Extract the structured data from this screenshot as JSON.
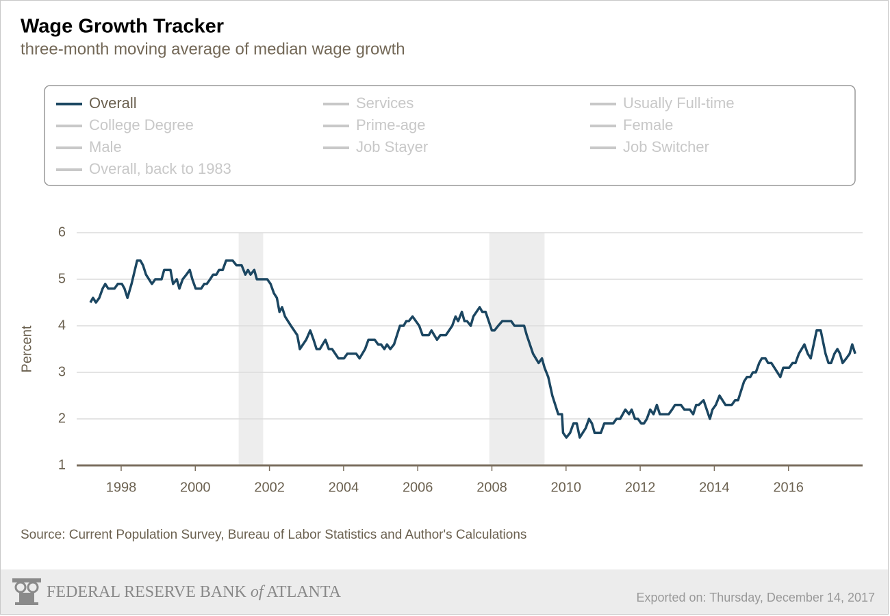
{
  "chart_data": {
    "type": "line",
    "title": "Wage Growth Tracker",
    "subtitle": "three-month moving average of median wage growth",
    "y_label": "Percent",
    "source": "Source: Current Population Survey, Bureau of Labor Statistics and Author's Calculations",
    "footer": {
      "bank": "FEDERAL RESERVE BANK",
      "bank_of": "of",
      "bank_city": "ATLANTA",
      "exported": "Exported on: Thursday, December 14, 2017"
    },
    "xlim": [
      1996.8,
      2018.0
    ],
    "xticks": [
      1998,
      2000,
      2002,
      2004,
      2006,
      2008,
      2010,
      2012,
      2014,
      2016
    ],
    "ylim": [
      1,
      6
    ],
    "yticks": [
      1,
      2,
      3,
      4,
      5,
      6
    ],
    "grid": true,
    "shaded_periods": [
      [
        2001.17,
        2001.83
      ],
      [
        2007.93,
        2009.42
      ]
    ],
    "shade_color": "#ededed",
    "inactive_color": "#c8c8c8",
    "inactive_series": [
      "Services",
      "Usually Full-time",
      "College Degree",
      "Prime-age",
      "Female",
      "Male",
      "Job Stayer",
      "Job Switcher",
      "Overall, back to 1983"
    ],
    "series": [
      {
        "name": "Overall",
        "color": "#1b4661",
        "x": [
          1997.17,
          1997.24,
          1997.32,
          1997.41,
          1997.5,
          1997.57,
          1997.65,
          1997.82,
          1997.91,
          1998.02,
          1998.09,
          1998.17,
          1998.28,
          1998.37,
          1998.43,
          1998.52,
          1998.59,
          1998.67,
          1998.83,
          1998.92,
          1999.09,
          1999.16,
          1999.33,
          1999.4,
          1999.5,
          1999.57,
          1999.66,
          1999.76,
          1999.85,
          1999.92,
          2000.01,
          2000.16,
          2000.24,
          2000.31,
          2000.4,
          2000.48,
          2000.57,
          2000.64,
          2000.74,
          2000.83,
          2001.01,
          2001.11,
          2001.25,
          2001.35,
          2001.42,
          2001.49,
          2001.59,
          2001.66,
          2001.94,
          2002.03,
          2002.12,
          2002.2,
          2002.27,
          2002.34,
          2002.42,
          2002.58,
          2002.75,
          2002.82,
          2002.99,
          2003.1,
          2003.19,
          2003.27,
          2003.36,
          2003.51,
          2003.6,
          2003.69,
          2003.86,
          2004.01,
          2004.1,
          2004.34,
          2004.43,
          2004.58,
          2004.67,
          2004.84,
          2004.93,
          2005.01,
          2005.1,
          2005.17,
          2005.26,
          2005.36,
          2005.52,
          2005.62,
          2005.69,
          2005.76,
          2005.86,
          2006.04,
          2006.13,
          2006.3,
          2006.37,
          2006.52,
          2006.61,
          2006.76,
          2006.93,
          2007.02,
          2007.09,
          2007.19,
          2007.26,
          2007.33,
          2007.43,
          2007.5,
          2007.67,
          2007.74,
          2007.83,
          2008.0,
          2008.07,
          2008.17,
          2008.28,
          2008.52,
          2008.61,
          2008.87,
          2008.94,
          2009.11,
          2009.26,
          2009.35,
          2009.42,
          2009.52,
          2009.63,
          2009.79,
          2009.89,
          2009.92,
          2010.01,
          2010.11,
          2010.2,
          2010.29,
          2010.37,
          2010.53,
          2010.62,
          2010.7,
          2010.77,
          2010.94,
          2011.03,
          2011.27,
          2011.36,
          2011.46,
          2011.6,
          2011.7,
          2011.77,
          2011.86,
          2011.94,
          2012.03,
          2012.1,
          2012.18,
          2012.27,
          2012.36,
          2012.45,
          2012.53,
          2012.77,
          2012.86,
          2012.94,
          2013.1,
          2013.19,
          2013.34,
          2013.43,
          2013.51,
          2013.58,
          2013.71,
          2013.88,
          2013.95,
          2014.04,
          2014.14,
          2014.3,
          2014.47,
          2014.56,
          2014.64,
          2014.8,
          2014.88,
          2014.97,
          2015.04,
          2015.12,
          2015.21,
          2015.28,
          2015.38,
          2015.45,
          2015.54,
          2015.62,
          2015.78,
          2015.86,
          2016.02,
          2016.11,
          2016.19,
          2016.28,
          2016.43,
          2016.52,
          2016.6,
          2016.76,
          2016.87,
          2017.0,
          2017.08,
          2017.15,
          2017.24,
          2017.32,
          2017.39,
          2017.46,
          2017.56,
          2017.65,
          2017.72,
          2017.8
        ],
        "values": [
          4.5,
          4.6,
          4.5,
          4.6,
          4.8,
          4.9,
          4.8,
          4.8,
          4.9,
          4.9,
          4.8,
          4.6,
          4.9,
          5.2,
          5.4,
          5.4,
          5.3,
          5.1,
          4.9,
          5.0,
          5.0,
          5.2,
          5.2,
          4.9,
          5.0,
          4.8,
          5.0,
          5.1,
          5.2,
          5.0,
          4.8,
          4.8,
          4.9,
          4.9,
          5.0,
          5.1,
          5.1,
          5.2,
          5.2,
          5.4,
          5.4,
          5.3,
          5.3,
          5.1,
          5.2,
          5.1,
          5.2,
          5.0,
          5.0,
          4.9,
          4.7,
          4.6,
          4.3,
          4.4,
          4.2,
          4.0,
          3.8,
          3.5,
          3.7,
          3.9,
          3.7,
          3.5,
          3.5,
          3.7,
          3.5,
          3.5,
          3.3,
          3.3,
          3.4,
          3.4,
          3.3,
          3.5,
          3.7,
          3.7,
          3.6,
          3.6,
          3.5,
          3.6,
          3.5,
          3.6,
          4.0,
          4.0,
          4.1,
          4.1,
          4.2,
          4.0,
          3.8,
          3.8,
          3.9,
          3.7,
          3.8,
          3.8,
          4.0,
          4.2,
          4.1,
          4.3,
          4.1,
          4.1,
          4.0,
          4.2,
          4.4,
          4.3,
          4.3,
          3.9,
          3.9,
          4.0,
          4.1,
          4.1,
          4.0,
          4.0,
          3.8,
          3.4,
          3.2,
          3.3,
          3.1,
          2.9,
          2.5,
          2.1,
          2.1,
          1.7,
          1.6,
          1.7,
          1.9,
          1.9,
          1.6,
          1.8,
          2.0,
          1.9,
          1.7,
          1.7,
          1.9,
          1.9,
          2.0,
          2.0,
          2.2,
          2.1,
          2.2,
          2.0,
          2.0,
          1.9,
          1.9,
          2.0,
          2.2,
          2.1,
          2.3,
          2.1,
          2.1,
          2.2,
          2.3,
          2.3,
          2.2,
          2.2,
          2.1,
          2.3,
          2.3,
          2.4,
          2.0,
          2.2,
          2.3,
          2.5,
          2.3,
          2.3,
          2.4,
          2.4,
          2.8,
          2.9,
          2.9,
          3.0,
          3.0,
          3.2,
          3.3,
          3.3,
          3.2,
          3.2,
          3.1,
          2.9,
          3.1,
          3.1,
          3.2,
          3.2,
          3.4,
          3.6,
          3.4,
          3.3,
          3.9,
          3.9,
          3.4,
          3.2,
          3.2,
          3.4,
          3.5,
          3.4,
          3.2,
          3.3,
          3.4,
          3.6,
          3.4
        ]
      }
    ]
  }
}
